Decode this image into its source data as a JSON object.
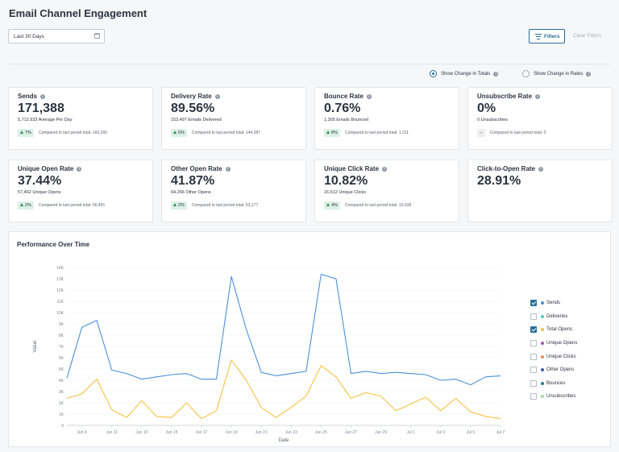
{
  "page": {
    "title": "Email Channel Engagement"
  },
  "controls": {
    "date_range": "Last 30 Days",
    "filters_label": "Filters",
    "clear_filters_label": "Clear Filters",
    "show_change_totals": "Show Change in Totals",
    "show_change_rates": "Show Change in Rates",
    "selected_change_mode": "totals"
  },
  "cards": [
    {
      "title": "Sends",
      "value": "171,388",
      "sub": "5,712.933 Average Per Day",
      "badge": "7%",
      "badge_dir": "up",
      "compare": "Compared to last period total: 160,260"
    },
    {
      "title": "Delivery Rate",
      "value": "89.56%",
      "sub": "153,497 Emails Delivered",
      "badge": "6%",
      "badge_dir": "up",
      "compare": "Compared to last period total: 144,387"
    },
    {
      "title": "Bounce Rate",
      "value": "0.76%",
      "sub": "1,305 Emails Bounced",
      "badge": "8%",
      "badge_dir": "up",
      "compare": "Compared to last period total: 1,211"
    },
    {
      "title": "Unsubscribe Rate",
      "value": "0%",
      "sub": "0 Unsubscribes",
      "badge": "--",
      "badge_dir": "none",
      "compare": "Compared to last period total: 0"
    },
    {
      "title": "Unique Open Rate",
      "value": "37.44%",
      "sub": "57,462 Unique Opens",
      "badge": "2%",
      "badge_dir": "up",
      "compare": "Compared to last period total: 56,491"
    },
    {
      "title": "Other Open Rate",
      "value": "41.87%",
      "sub": "64,266 Other Opens",
      "badge": "2%",
      "badge_dir": "up",
      "compare": "Compared to last period total: 63,177"
    },
    {
      "title": "Unique Click Rate",
      "value": "10.82%",
      "sub": "16,612 Unique Clicks",
      "badge": "4%",
      "badge_dir": "up",
      "compare": "Compared to last period total: 16,038"
    },
    {
      "title": "Click-to-Open Rate",
      "value": "28.91%"
    }
  ],
  "chart_panel": {
    "title": "Performance Over Time"
  },
  "legend": [
    {
      "label": "Sends",
      "checked": true,
      "color": "#4a90d9"
    },
    {
      "label": "Deliveries",
      "checked": false,
      "color": "#4ecdc4"
    },
    {
      "label": "Total Opens",
      "checked": true,
      "color": "#f5c242"
    },
    {
      "label": "Unique Opens",
      "checked": false,
      "color": "#9b59b6"
    },
    {
      "label": "Unique Clicks",
      "checked": false,
      "color": "#f08a5d"
    },
    {
      "label": "Other Opens",
      "checked": false,
      "color": "#3b5ba9"
    },
    {
      "label": "Bounces",
      "checked": false,
      "color": "#2a7f8a"
    },
    {
      "label": "Unsubscribes",
      "checked": false,
      "color": "#a8d5a2"
    }
  ],
  "chart_data": {
    "type": "line",
    "xlabel": "Date",
    "ylabel": "Value",
    "ylim": [
      0,
      14000
    ],
    "yticks": [
      "0",
      "1K",
      "2K",
      "3K",
      "4K",
      "5K",
      "6K",
      "7K",
      "8K",
      "9K",
      "10K",
      "11K",
      "12K",
      "13K",
      "14K"
    ],
    "xticks": [
      "Jun 9",
      "Jun 11",
      "Jun 13",
      "Jun 15",
      "Jun 17",
      "Jun 19",
      "Jun 21",
      "Jun 23",
      "Jun 25",
      "Jun 27",
      "Jun 29",
      "Jul 1",
      "Jul 3",
      "Jul 5",
      "Jul 7"
    ],
    "x": [
      "Jun 8",
      "Jun 9",
      "Jun 10",
      "Jun 11",
      "Jun 12",
      "Jun 13",
      "Jun 14",
      "Jun 15",
      "Jun 16",
      "Jun 17",
      "Jun 18",
      "Jun 19",
      "Jun 20",
      "Jun 21",
      "Jun 22",
      "Jun 23",
      "Jun 24",
      "Jun 25",
      "Jun 26",
      "Jun 27",
      "Jun 28",
      "Jun 29",
      "Jun 30",
      "Jul 1",
      "Jul 2",
      "Jul 3",
      "Jul 4",
      "Jul 5",
      "Jul 6",
      "Jul 7"
    ],
    "series": [
      {
        "name": "Sends",
        "color": "#4a90d9",
        "values": [
          4200,
          8700,
          9300,
          4900,
          4600,
          4100,
          4300,
          4500,
          4600,
          4100,
          4100,
          13200,
          8500,
          4700,
          4400,
          4600,
          4800,
          13400,
          13000,
          4600,
          4800,
          4600,
          4700,
          4600,
          4500,
          4000,
          4100,
          3600,
          4300,
          4400
        ]
      },
      {
        "name": "Total Opens",
        "color": "#f5c242",
        "values": [
          2400,
          2800,
          4100,
          1400,
          700,
          2200,
          800,
          700,
          2000,
          600,
          1300,
          5800,
          4000,
          1600,
          700,
          1600,
          2600,
          5300,
          4300,
          2400,
          2900,
          2600,
          1300,
          1900,
          2500,
          1300,
          2400,
          1200,
          800,
          600
        ]
      }
    ]
  }
}
